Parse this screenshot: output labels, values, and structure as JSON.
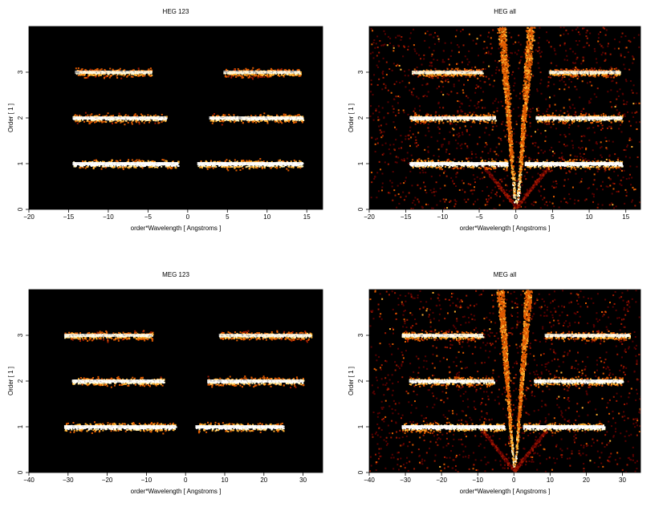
{
  "chart_data": [
    {
      "type": "heatmap",
      "title": "HEG 123",
      "xlabel": "order*Wavelength [ Angstroms ]",
      "ylabel": "Order [ 1 ]",
      "xlim": [
        -20,
        17
      ],
      "ylim": [
        0,
        4
      ],
      "xticks": [
        -20,
        -15,
        -10,
        -5,
        0,
        5,
        10,
        15
      ],
      "yticks": [
        0,
        1,
        2,
        3
      ],
      "background": "#000000",
      "colormap": [
        "#5a0000",
        "#a01800",
        "#e05a00",
        "#ffb030",
        "#fff0b0",
        "#ffffff"
      ],
      "bands": [
        {
          "order": 1,
          "x_start": -14.5,
          "x_end": -1.2,
          "intensity": 1.0
        },
        {
          "order": 1,
          "x_start": 1.2,
          "x_end": 14.5,
          "intensity": 1.0
        },
        {
          "order": 2,
          "x_start": -14.5,
          "x_end": -2.7,
          "intensity": 0.85
        },
        {
          "order": 2,
          "x_start": 2.7,
          "x_end": 14.5,
          "intensity": 0.85
        },
        {
          "order": 3,
          "x_start": -14.2,
          "x_end": -4.5,
          "intensity": 0.7
        },
        {
          "order": 3,
          "x_start": 4.5,
          "x_end": 14.2,
          "intensity": 0.7
        }
      ],
      "has_zeroth_order": false
    },
    {
      "type": "heatmap",
      "title": "HEG all",
      "xlabel": "order*Wavelength [ Angstroms ]",
      "ylabel": "Order [ 1 ]",
      "xlim": [
        -20,
        17
      ],
      "ylim": [
        0,
        4
      ],
      "xticks": [
        -20,
        -15,
        -10,
        -5,
        0,
        5,
        10,
        15
      ],
      "yticks": [
        0,
        1,
        2,
        3
      ],
      "background": "#000000",
      "colormap": [
        "#5a0000",
        "#a01800",
        "#e05a00",
        "#ffb030",
        "#fff0b0",
        "#ffffff"
      ],
      "bands": [
        {
          "order": 1,
          "x_start": -14.5,
          "x_end": -1.2,
          "intensity": 1.0
        },
        {
          "order": 1,
          "x_start": 1.2,
          "x_end": 14.5,
          "intensity": 1.0
        },
        {
          "order": 2,
          "x_start": -14.5,
          "x_end": -2.7,
          "intensity": 0.85
        },
        {
          "order": 2,
          "x_start": 2.7,
          "x_end": 14.5,
          "intensity": 0.85
        },
        {
          "order": 3,
          "x_start": -14.2,
          "x_end": -4.5,
          "intensity": 0.7
        },
        {
          "order": 3,
          "x_start": 4.5,
          "x_end": 14.2,
          "intensity": 0.7
        }
      ],
      "has_zeroth_order": true
    },
    {
      "type": "heatmap",
      "title": "MEG 123",
      "xlabel": "order*Wavelength [ Angstroms ]",
      "ylabel": "Order [ 1 ]",
      "xlim": [
        -40,
        35
      ],
      "ylim": [
        0,
        4
      ],
      "xticks": [
        -40,
        -30,
        -20,
        -10,
        0,
        10,
        20,
        30
      ],
      "yticks": [
        0,
        1,
        2,
        3
      ],
      "background": "#000000",
      "colormap": [
        "#5a0000",
        "#a01800",
        "#e05a00",
        "#ffb030",
        "#fff0b0",
        "#ffffff"
      ],
      "bands": [
        {
          "order": 1,
          "x_start": -31,
          "x_end": -2.5,
          "intensity": 1.0
        },
        {
          "order": 1,
          "x_start": 2.5,
          "x_end": 25,
          "intensity": 1.0
        },
        {
          "order": 2,
          "x_start": -29,
          "x_end": -5.5,
          "intensity": 0.85
        },
        {
          "order": 2,
          "x_start": 5.5,
          "x_end": 30,
          "intensity": 0.85
        },
        {
          "order": 3,
          "x_start": -31,
          "x_end": -8.5,
          "intensity": 0.75
        },
        {
          "order": 3,
          "x_start": 8.5,
          "x_end": 32,
          "intensity": 0.75
        }
      ],
      "has_zeroth_order": false
    },
    {
      "type": "heatmap",
      "title": "MEG all",
      "xlabel": "order*Wavelength [ Angstroms ]",
      "ylabel": "Order [ 1 ]",
      "xlim": [
        -40,
        35
      ],
      "ylim": [
        0,
        4
      ],
      "xticks": [
        -40,
        -30,
        -20,
        -10,
        0,
        10,
        20,
        30
      ],
      "yticks": [
        0,
        1,
        2,
        3
      ],
      "background": "#000000",
      "colormap": [
        "#5a0000",
        "#a01800",
        "#e05a00",
        "#ffb030",
        "#fff0b0",
        "#ffffff"
      ],
      "bands": [
        {
          "order": 1,
          "x_start": -31,
          "x_end": -2.5,
          "intensity": 1.0
        },
        {
          "order": 1,
          "x_start": 2.5,
          "x_end": 25,
          "intensity": 1.0
        },
        {
          "order": 2,
          "x_start": -29,
          "x_end": -5.5,
          "intensity": 0.85
        },
        {
          "order": 2,
          "x_start": 5.5,
          "x_end": 30,
          "intensity": 0.85
        },
        {
          "order": 3,
          "x_start": -31,
          "x_end": -8.5,
          "intensity": 0.75
        },
        {
          "order": 3,
          "x_start": 8.5,
          "x_end": 32,
          "intensity": 0.75
        }
      ],
      "has_zeroth_order": true
    }
  ]
}
